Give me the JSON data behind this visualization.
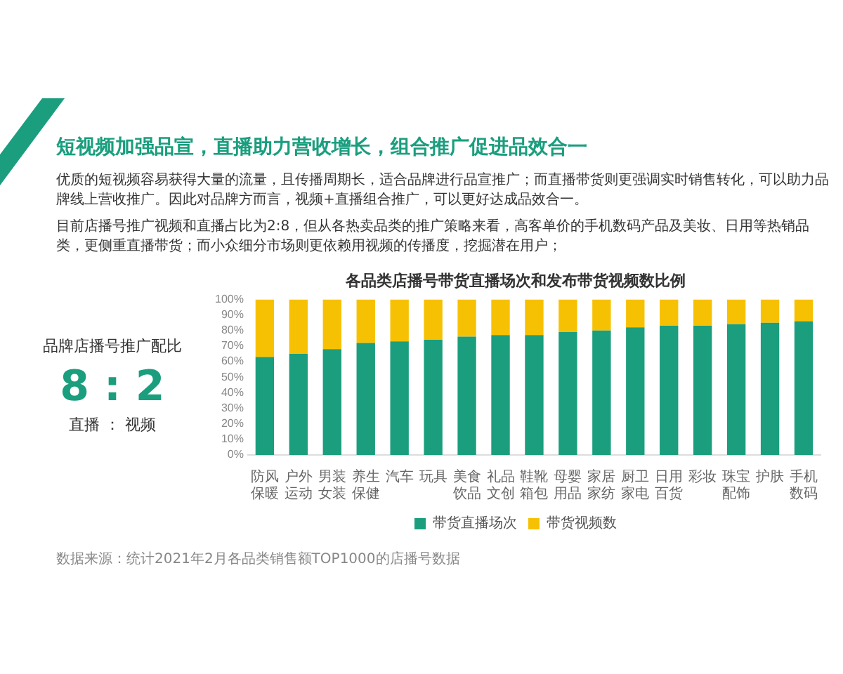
{
  "chart_data": {
    "type": "bar",
    "title": "短视频加强品宣，直播助力营收增长，组合推广促进品效合一",
    "subtitle": "各品类店播号带货直播场次和发布带货视频数比例",
    "annotations": [
      "优质的短视频容易获得大量的流量，且传播周期长，适合品牌进行品宣推广；而直播带货则更强调实时销售转化，可以助力品牌线上营收推广。因此对品牌方而言，视频+直播组合推广，可以更好达成品效合一。",
      "目前店播号推广视频和直播占比为2:8，但从各热卖品类的推广策略来看，高客单价的手机数码产品及美妆、日用等热销品类，更侧重直播带货；而小众细分市场则更依赖用视频的传播度，挖掘潜在用户；",
      "品牌店播号推广配比",
      "8 : 2",
      "直播 ： 视频",
      "数据来源：统计2021年2月各品类销售额TOP1000的店播号数据"
    ],
    "categories": [
      "防风保暖",
      "户外运动",
      "男装女装",
      "养生保健",
      "汽车",
      "玩具",
      "美食饮品",
      "礼品文创",
      "鞋靴箱包",
      "母婴用品",
      "家居家纺",
      "厨卫家电",
      "日用百货",
      "彩妆",
      "珠宝配饰",
      "护肤",
      "手机数码"
    ],
    "series": [
      {
        "name": "带货直播场次",
        "color": "#1a9e7e",
        "values": [
          63,
          65,
          68,
          72,
          73,
          74,
          76,
          77,
          77,
          79,
          80,
          82,
          83,
          83,
          84,
          85,
          86
        ]
      },
      {
        "name": "带货视频数",
        "color": "#f7c103",
        "values": [
          37,
          35,
          32,
          28,
          27,
          26,
          24,
          23,
          23,
          21,
          20,
          18,
          17,
          17,
          16,
          15,
          14
        ]
      }
    ],
    "stacked": true,
    "ylim": [
      0,
      100
    ],
    "yticks": [
      {
        "value": 0,
        "label": "0%"
      },
      {
        "value": 10,
        "label": "10%"
      },
      {
        "value": 20,
        "label": "20%"
      },
      {
        "value": 30,
        "label": "30%"
      },
      {
        "value": 40,
        "label": "40%"
      },
      {
        "value": 50,
        "label": "50%"
      },
      {
        "value": 60,
        "label": "60%"
      },
      {
        "value": 70,
        "label": "70%"
      },
      {
        "value": 80,
        "label": "80%"
      },
      {
        "value": 90,
        "label": "90%"
      },
      {
        "value": 100,
        "label": "100%"
      }
    ],
    "grid": false,
    "legend": "bottom"
  }
}
